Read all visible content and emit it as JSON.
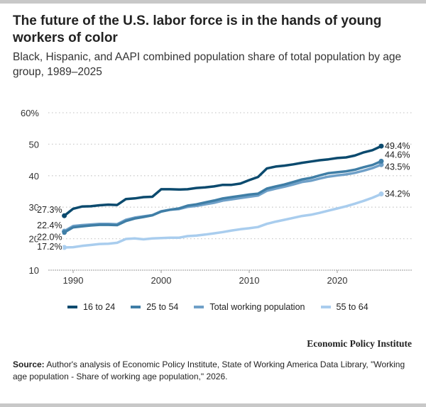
{
  "title": "The future of the U.S. labor force is in the hands of young workers of color",
  "subtitle": "Black, Hispanic, and AAPI combined population share of total population by age group, 1989–2025",
  "source_label": "Source:",
  "source_text": "Author's analysis of Economic Policy Institute, State of Working America Data Library, \"Working age population - Share of working age population,\" 2026.",
  "logo_text": "Economic Policy Institute",
  "chart_data": {
    "type": "line",
    "title": "The future of the U.S. labor force is in the hands of young workers of color",
    "xlabel": "",
    "ylabel": "",
    "ylim": [
      10,
      60
    ],
    "yticks": [
      10,
      20,
      30,
      40,
      50,
      60
    ],
    "ytick_labels": [
      "10",
      "20",
      "30",
      "40",
      "50",
      "60%"
    ],
    "xticks": [
      1990,
      2000,
      2010,
      2020
    ],
    "xtick_labels": [
      "1990",
      "2000",
      "2010",
      "2020"
    ],
    "xlim": [
      1988,
      2028
    ],
    "grid": "horizontal dotted",
    "legend": "bottom",
    "x": [
      1989,
      1990,
      1991,
      1992,
      1993,
      1994,
      1995,
      1996,
      1997,
      1998,
      1999,
      2000,
      2001,
      2002,
      2003,
      2004,
      2005,
      2006,
      2007,
      2008,
      2009,
      2010,
      2011,
      2012,
      2013,
      2014,
      2015,
      2016,
      2017,
      2018,
      2019,
      2020,
      2021,
      2022,
      2023,
      2024,
      2025
    ],
    "series": [
      {
        "name": "16 to 24",
        "color": "#0b4a6e",
        "start_label": "27.3%",
        "end_label": "49.4%",
        "values": [
          27.3,
          29.5,
          30.2,
          30.3,
          30.6,
          30.8,
          30.7,
          32.6,
          32.8,
          33.2,
          33.3,
          35.7,
          35.7,
          35.6,
          35.7,
          36.1,
          36.3,
          36.6,
          37.1,
          37.1,
          37.5,
          38.6,
          39.6,
          42.3,
          42.9,
          43.2,
          43.6,
          44.1,
          44.5,
          44.9,
          45.2,
          45.6,
          45.8,
          46.4,
          47.4,
          48.1,
          49.4
        ]
      },
      {
        "name": "25 to 54",
        "color": "#3f7ea6",
        "start_label": "22.0%",
        "end_label": "44.6%",
        "values": [
          22.0,
          23.6,
          23.9,
          24.2,
          24.4,
          24.4,
          24.3,
          25.6,
          26.4,
          26.9,
          27.4,
          28.6,
          29.2,
          29.6,
          30.5,
          30.9,
          31.5,
          32.1,
          32.8,
          33.2,
          33.6,
          34.0,
          34.3,
          35.9,
          36.6,
          37.2,
          38.0,
          38.8,
          39.3,
          40.1,
          40.8,
          41.1,
          41.4,
          41.9,
          42.7,
          43.4,
          44.6
        ]
      },
      {
        "name": "Total working population",
        "color": "#6fa0c8",
        "start_label": "22.4%",
        "end_label": "43.5%",
        "values": [
          22.4,
          24.0,
          24.3,
          24.5,
          24.7,
          24.7,
          24.6,
          26.0,
          26.7,
          27.1,
          27.5,
          28.7,
          29.2,
          29.4,
          30.1,
          30.4,
          30.9,
          31.4,
          32.1,
          32.5,
          32.9,
          33.3,
          33.7,
          35.2,
          35.9,
          36.5,
          37.2,
          38.0,
          38.4,
          39.1,
          39.7,
          40.1,
          40.4,
          40.9,
          41.6,
          42.4,
          43.5
        ]
      },
      {
        "name": "55 to 64",
        "color": "#a9cdee",
        "start_label": "17.2%",
        "end_label": "34.2%",
        "values": [
          17.2,
          17.3,
          17.7,
          18.0,
          18.3,
          18.4,
          18.7,
          19.9,
          20.1,
          19.8,
          20.1,
          20.2,
          20.3,
          20.3,
          20.8,
          21.0,
          21.3,
          21.7,
          22.1,
          22.6,
          23.0,
          23.3,
          23.7,
          24.7,
          25.4,
          26.0,
          26.6,
          27.2,
          27.6,
          28.2,
          28.9,
          29.6,
          30.3,
          31.1,
          32.0,
          33.0,
          34.2
        ]
      }
    ]
  }
}
